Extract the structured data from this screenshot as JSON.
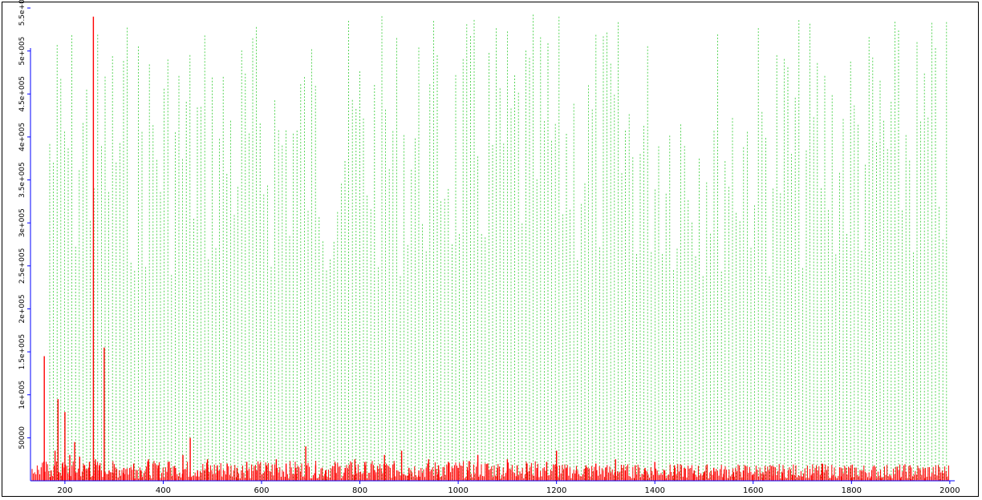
{
  "chart_data": {
    "type": "bar",
    "title": "",
    "xlabel": "",
    "ylabel": "",
    "xlim": [
      130,
      2010
    ],
    "ylim": [
      0,
      550000
    ],
    "x_ticks": [
      200,
      400,
      600,
      800,
      1000,
      1200,
      1400,
      1600,
      1800,
      2000
    ],
    "x_tick_labels": [
      "200",
      "400",
      "600",
      "800",
      "1000",
      "1200",
      "1400",
      "1600",
      "1800",
      "2000"
    ],
    "y_ticks": [
      50000,
      100000,
      150000,
      200000,
      250000,
      300000,
      350000,
      400000,
      450000,
      500000,
      550000
    ],
    "y_tick_labels": [
      "50000",
      "1e+005",
      "1.5e+005",
      "2e+005",
      "2.5e+005",
      "3e+005",
      "3.5e+005",
      "4e+005",
      "4.5e+005",
      "5e+005",
      "5.5e+005"
    ],
    "series": [
      {
        "color": "#ff0000",
        "peaks": [
          [
            158,
            145000
          ],
          [
            172,
            12000
          ],
          [
            180,
            35000
          ],
          [
            186,
            95000
          ],
          [
            195,
            20000
          ],
          [
            200,
            80000
          ],
          [
            210,
            30000
          ],
          [
            220,
            45000
          ],
          [
            230,
            28000
          ],
          [
            240,
            18000
          ],
          [
            250,
            22000
          ],
          [
            258,
            540000
          ],
          [
            262,
            25000
          ],
          [
            270,
            18000
          ],
          [
            280,
            155000
          ],
          [
            290,
            12000
          ],
          [
            300,
            9000
          ],
          [
            320,
            15000
          ],
          [
            340,
            20000
          ],
          [
            355,
            12000
          ],
          [
            370,
            25000
          ],
          [
            390,
            18000
          ],
          [
            410,
            22000
          ],
          [
            425,
            15000
          ],
          [
            440,
            30000
          ],
          [
            455,
            50000
          ],
          [
            470,
            12000
          ],
          [
            490,
            25000
          ],
          [
            510,
            18000
          ],
          [
            530,
            20000
          ],
          [
            550,
            15000
          ],
          [
            570,
            22000
          ],
          [
            590,
            12000
          ],
          [
            610,
            18000
          ],
          [
            630,
            25000
          ],
          [
            650,
            20000
          ],
          [
            670,
            15000
          ],
          [
            690,
            40000
          ],
          [
            710,
            18000
          ],
          [
            730,
            12000
          ],
          [
            750,
            20000
          ],
          [
            770,
            15000
          ],
          [
            790,
            25000
          ],
          [
            810,
            18000
          ],
          [
            830,
            12000
          ],
          [
            850,
            30000
          ],
          [
            870,
            20000
          ],
          [
            885,
            35000
          ],
          [
            900,
            15000
          ],
          [
            920,
            12000
          ],
          [
            940,
            25000
          ],
          [
            960,
            18000
          ],
          [
            980,
            22000
          ],
          [
            1000,
            15000
          ],
          [
            1020,
            12000
          ],
          [
            1040,
            30000
          ],
          [
            1060,
            20000
          ],
          [
            1080,
            15000
          ],
          [
            1100,
            25000
          ],
          [
            1120,
            18000
          ],
          [
            1140,
            20000
          ],
          [
            1160,
            15000
          ],
          [
            1180,
            22000
          ],
          [
            1200,
            35000
          ],
          [
            1220,
            15000
          ],
          [
            1240,
            12000
          ],
          [
            1260,
            18000
          ],
          [
            1280,
            20000
          ],
          [
            1300,
            15000
          ],
          [
            1320,
            25000
          ],
          [
            1340,
            12000
          ],
          [
            1360,
            18000
          ],
          [
            1380,
            15000
          ],
          [
            1400,
            22000
          ],
          [
            1420,
            12000
          ],
          [
            1440,
            18000
          ],
          [
            1460,
            15000
          ],
          [
            1480,
            12000
          ],
          [
            1500,
            10000
          ],
          [
            1520,
            15000
          ],
          [
            1540,
            8000
          ],
          [
            1560,
            10000
          ],
          [
            1580,
            12000
          ],
          [
            1600,
            8000
          ],
          [
            1620,
            10000
          ],
          [
            1640,
            6000
          ],
          [
            1660,
            9000
          ],
          [
            1680,
            7000
          ],
          [
            1700,
            5000
          ],
          [
            1720,
            8000
          ],
          [
            1740,
            20000
          ],
          [
            1760,
            6000
          ],
          [
            1780,
            5000
          ],
          [
            1800,
            4000
          ],
          [
            1820,
            3000
          ],
          [
            1840,
            5000
          ],
          [
            1860,
            3000
          ],
          [
            1880,
            4000
          ],
          [
            1900,
            3000
          ],
          [
            1920,
            2000
          ],
          [
            1950,
            3000
          ],
          [
            1980,
            2000
          ],
          [
            1995,
            1500
          ]
        ]
      }
    ]
  }
}
